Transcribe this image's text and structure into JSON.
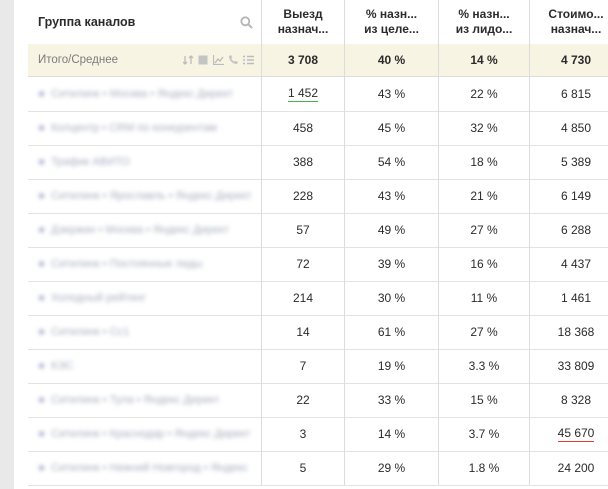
{
  "header": {
    "group_label": "Группа каналов",
    "col1_l1": "Выезд",
    "col1_l2": "назнач...",
    "col2_l1": "% назн...",
    "col2_l2": "из целе...",
    "col3_l1": "% назн...",
    "col3_l2": "из лидо...",
    "col4_l1": "Стоимо...",
    "col4_l2": "назнач..."
  },
  "summary": {
    "label": "Итого/Среднее",
    "v1": "3 708",
    "v2": "40 %",
    "v3": "14 %",
    "v4": "4 730"
  },
  "rows": [
    {
      "name": "Ситилинк • Москва • Яндекс Директ",
      "v1": "1 452",
      "v2": "43 %",
      "v3": "22 %",
      "v4": "6 815"
    },
    {
      "name": "Колцентр • CRM по конкурентам",
      "v1": "458",
      "v2": "45 %",
      "v3": "32 %",
      "v4": "4 850"
    },
    {
      "name": "Трафик АВИТО",
      "v1": "388",
      "v2": "54 %",
      "v3": "18 %",
      "v4": "5 389"
    },
    {
      "name": "Ситилинк • Ярославль • Яндекс Директ",
      "v1": "228",
      "v2": "43 %",
      "v3": "21 %",
      "v4": "6 149"
    },
    {
      "name": "Дзержин • Москва • Яндекс Директ",
      "v1": "57",
      "v2": "49 %",
      "v3": "27 %",
      "v4": "6 288"
    },
    {
      "name": "Ситилинк • Постоянные лиды",
      "v1": "72",
      "v2": "39 %",
      "v3": "16 %",
      "v4": "4 437"
    },
    {
      "name": "Холодный рейтинг",
      "v1": "214",
      "v2": "30 %",
      "v3": "11 %",
      "v4": "1 461"
    },
    {
      "name": "Ситилинк • Сс1",
      "v1": "14",
      "v2": "61 %",
      "v3": "27 %",
      "v4": "18 368"
    },
    {
      "name": "КЭС",
      "v1": "7",
      "v2": "19 %",
      "v3": "3.3 %",
      "v4": "33 809"
    },
    {
      "name": "Ситилинк • Тула • Яндекс Директ",
      "v1": "22",
      "v2": "33 %",
      "v3": "15 %",
      "v4": "8 328"
    },
    {
      "name": "Ситилинк • Краснодар • Яндекс Директ",
      "v1": "3",
      "v2": "14 %",
      "v3": "3.7 %",
      "v4": "45 670"
    },
    {
      "name": "Ситилинк • Нижний Новгород • Яндекс",
      "v1": "5",
      "v2": "29 %",
      "v3": "1.8 %",
      "v4": "24 200"
    }
  ],
  "highlight": {
    "green": "#4caf50",
    "red": "#e53935"
  },
  "icons": [
    "sort-icon",
    "square-icon",
    "chart-icon",
    "phone-icon",
    "list-icon",
    "search-icon"
  ]
}
